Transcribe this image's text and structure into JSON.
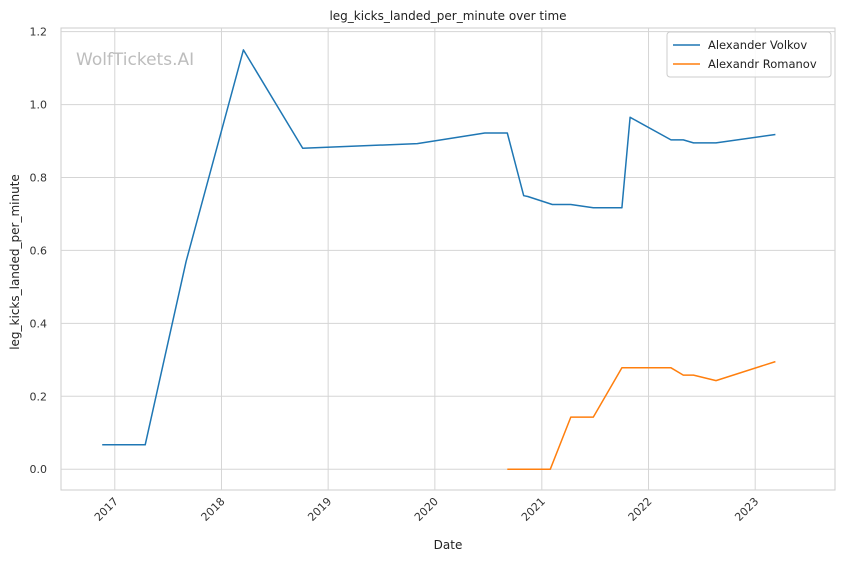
{
  "chart_data": {
    "type": "line",
    "title": "leg_kicks_landed_per_minute over time",
    "xlabel": "Date",
    "ylabel": "leg_kicks_landed_per_minute",
    "watermark": "WolfTickets.AI",
    "x_ticks": [
      "2017",
      "2018",
      "2019",
      "2020",
      "2021",
      "2022",
      "2023"
    ],
    "y_ticks": [
      "0.0",
      "0.2",
      "0.4",
      "0.6",
      "0.8",
      "1.0",
      "1.2"
    ],
    "xlim": [
      "2016-07-01",
      "2023-10-01"
    ],
    "ylim": [
      -0.057,
      1.21
    ],
    "grid": true,
    "legend_position": "top-right",
    "series": [
      {
        "name": "Alexander Volkov",
        "color": "#1f77b4",
        "points": [
          {
            "x": "2016-11-19",
            "y": 0.067
          },
          {
            "x": "2017-04-15",
            "y": 0.067
          },
          {
            "x": "2017-09-02",
            "y": 0.57
          },
          {
            "x": "2018-03-17",
            "y": 1.15
          },
          {
            "x": "2018-10-06",
            "y": 0.88
          },
          {
            "x": "2019-11-02",
            "y": 0.893
          },
          {
            "x": "2020-06-20",
            "y": 0.922
          },
          {
            "x": "2020-09-05",
            "y": 0.922
          },
          {
            "x": "2020-10-31",
            "y": 0.75
          },
          {
            "x": "2020-11-14",
            "y": 0.748
          },
          {
            "x": "2021-02-06",
            "y": 0.726
          },
          {
            "x": "2021-04-10",
            "y": 0.726
          },
          {
            "x": "2021-06-26",
            "y": 0.717
          },
          {
            "x": "2021-10-02",
            "y": 0.717
          },
          {
            "x": "2021-10-30",
            "y": 0.965
          },
          {
            "x": "2022-03-19",
            "y": 0.903
          },
          {
            "x": "2022-04-30",
            "y": 0.903
          },
          {
            "x": "2022-06-04",
            "y": 0.895
          },
          {
            "x": "2022-08-20",
            "y": 0.895
          },
          {
            "x": "2023-03-11",
            "y": 0.918
          }
        ]
      },
      {
        "name": "Alexandr Romanov",
        "color": "#ff7f0e",
        "points": [
          {
            "x": "2020-09-05",
            "y": 0.0
          },
          {
            "x": "2021-01-30",
            "y": 0.0
          },
          {
            "x": "2021-04-10",
            "y": 0.143
          },
          {
            "x": "2021-06-26",
            "y": 0.143
          },
          {
            "x": "2021-10-02",
            "y": 0.278
          },
          {
            "x": "2022-03-19",
            "y": 0.278
          },
          {
            "x": "2022-04-30",
            "y": 0.258
          },
          {
            "x": "2022-06-04",
            "y": 0.258
          },
          {
            "x": "2022-08-20",
            "y": 0.243
          },
          {
            "x": "2023-03-11",
            "y": 0.295
          }
        ]
      }
    ]
  }
}
